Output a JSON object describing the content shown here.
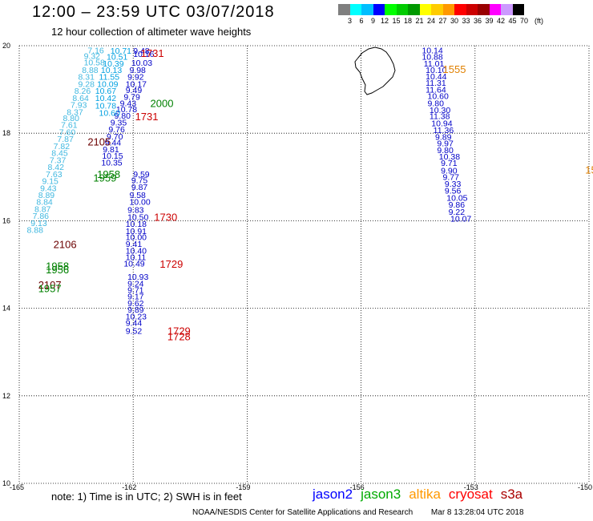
{
  "header": {
    "title": "12:00 – 23:59 UTC 03/07/2018",
    "subtitle": "12 hour collection of altimeter wave heights"
  },
  "colorbar": {
    "colors": [
      "#7f7f7f",
      "#00ffff",
      "#00bfff",
      "#0000ff",
      "#00ff00",
      "#00cc00",
      "#009900",
      "#ffff00",
      "#ffcc00",
      "#ff9900",
      "#ff0000",
      "#cc0000",
      "#990000",
      "#ff00ff",
      "#cc99ff",
      "#000000"
    ],
    "labels": [
      "3",
      "6",
      "9",
      "12",
      "15",
      "18",
      "21",
      "24",
      "27",
      "30",
      "33",
      "36",
      "39",
      "42",
      "45",
      "70",
      "(ft)"
    ]
  },
  "map": {
    "lon_ticks": [
      "-165",
      "-162",
      "-159",
      "-156",
      "-153",
      "-150"
    ],
    "lat_ticks": [
      "20",
      "18",
      "16",
      "14",
      "12",
      "10"
    ],
    "lon_range": [
      -165,
      -150
    ],
    "lat_range": [
      10,
      20
    ],
    "grid": "dotted",
    "coastline": "Island of Hawaii (Big Island)",
    "tracks": [
      {
        "satellite": "jason2",
        "color": "#0000c8",
        "points": [
          {
            "lon": -162.0,
            "lat": 19.82,
            "v": "9.48"
          },
          {
            "lon": -162.0,
            "lat": 19.74,
            "v": "10.16"
          },
          {
            "lon": -162.05,
            "lat": 19.54,
            "v": "10.03"
          },
          {
            "lon": -162.1,
            "lat": 19.38,
            "v": "9.98"
          },
          {
            "lon": -162.15,
            "lat": 19.22,
            "v": "9.92"
          },
          {
            "lon": -162.2,
            "lat": 19.06,
            "v": "10.17"
          },
          {
            "lon": -162.2,
            "lat": 18.92,
            "v": "9.49"
          },
          {
            "lon": -162.25,
            "lat": 18.76,
            "v": "9.79"
          },
          {
            "lon": -162.35,
            "lat": 18.62,
            "v": "9.43"
          },
          {
            "lon": -162.45,
            "lat": 18.48,
            "v": "10.78"
          },
          {
            "lon": -162.5,
            "lat": 18.33,
            "v": "9.80"
          },
          {
            "lon": -162.6,
            "lat": 18.18,
            "v": "9.35"
          },
          {
            "lon": -162.65,
            "lat": 18.02,
            "v": "9.76"
          },
          {
            "lon": -162.7,
            "lat": 17.86,
            "v": "9.70"
          },
          {
            "lon": -162.75,
            "lat": 17.72,
            "v": "9.44"
          },
          {
            "lon": -162.8,
            "lat": 17.56,
            "v": "9.81"
          },
          {
            "lon": -162.82,
            "lat": 17.42,
            "v": "10.15"
          },
          {
            "lon": -162.84,
            "lat": 17.26,
            "v": "10.35"
          },
          {
            "lon": -162.0,
            "lat": 17.0,
            "v": "9.59"
          },
          {
            "lon": -162.05,
            "lat": 16.86,
            "v": "9.75"
          },
          {
            "lon": -162.05,
            "lat": 16.7,
            "v": "9.87"
          },
          {
            "lon": -162.1,
            "lat": 16.52,
            "v": "9.58"
          },
          {
            "lon": -162.1,
            "lat": 16.36,
            "v": "10.00"
          },
          {
            "lon": -162.15,
            "lat": 16.18,
            "v": "9.83"
          },
          {
            "lon": -162.15,
            "lat": 16.02,
            "v": "10.50"
          },
          {
            "lon": -162.2,
            "lat": 15.86,
            "v": "10.18"
          },
          {
            "lon": -162.2,
            "lat": 15.7,
            "v": "10.91"
          },
          {
            "lon": -162.2,
            "lat": 15.56,
            "v": "10.00"
          },
          {
            "lon": -162.2,
            "lat": 15.4,
            "v": "9.41"
          },
          {
            "lon": -162.2,
            "lat": 15.25,
            "v": "10.40"
          },
          {
            "lon": -162.2,
            "lat": 15.1,
            "v": "10.11"
          },
          {
            "lon": -162.25,
            "lat": 14.95,
            "v": "10.49"
          },
          {
            "lon": -162.15,
            "lat": 14.65,
            "v": "10.93"
          },
          {
            "lon": -162.15,
            "lat": 14.5,
            "v": "9.24"
          },
          {
            "lon": -162.15,
            "lat": 14.35,
            "v": "9.71"
          },
          {
            "lon": -162.15,
            "lat": 14.2,
            "v": "9.17"
          },
          {
            "lon": -162.15,
            "lat": 14.05,
            "v": "9.62"
          },
          {
            "lon": -162.15,
            "lat": 13.9,
            "v": "9.89"
          },
          {
            "lon": -162.2,
            "lat": 13.75,
            "v": "10.23"
          },
          {
            "lon": -162.2,
            "lat": 13.6,
            "v": "9.44"
          },
          {
            "lon": -162.2,
            "lat": 13.42,
            "v": "9.52"
          },
          {
            "lon": -154.4,
            "lat": 19.83,
            "v": "10.14"
          },
          {
            "lon": -154.4,
            "lat": 19.68,
            "v": "10.88"
          },
          {
            "lon": -154.35,
            "lat": 19.52,
            "v": "11.01"
          },
          {
            "lon": -154.3,
            "lat": 19.38,
            "v": "10.10"
          },
          {
            "lon": -154.3,
            "lat": 19.23,
            "v": "10.44"
          },
          {
            "lon": -154.3,
            "lat": 19.08,
            "v": "11.31"
          },
          {
            "lon": -154.3,
            "lat": 18.93,
            "v": "11.64"
          },
          {
            "lon": -154.25,
            "lat": 18.78,
            "v": "10.60"
          },
          {
            "lon": -154.25,
            "lat": 18.62,
            "v": "9.80"
          },
          {
            "lon": -154.2,
            "lat": 18.46,
            "v": "10.30"
          },
          {
            "lon": -154.2,
            "lat": 18.32,
            "v": "11.38"
          },
          {
            "lon": -154.15,
            "lat": 18.16,
            "v": "10.94"
          },
          {
            "lon": -154.1,
            "lat": 18.0,
            "v": "11.36"
          },
          {
            "lon": -154.05,
            "lat": 17.85,
            "v": "9.89"
          },
          {
            "lon": -154.0,
            "lat": 17.7,
            "v": "9.97"
          },
          {
            "lon": -154.0,
            "lat": 17.55,
            "v": "9.80"
          },
          {
            "lon": -153.95,
            "lat": 17.4,
            "v": "10.38"
          },
          {
            "lon": -153.9,
            "lat": 17.25,
            "v": "9.71"
          },
          {
            "lon": -153.9,
            "lat": 17.08,
            "v": "9.90"
          },
          {
            "lon": -153.85,
            "lat": 16.93,
            "v": "9.77"
          },
          {
            "lon": -153.8,
            "lat": 16.78,
            "v": "9.33"
          },
          {
            "lon": -153.8,
            "lat": 16.62,
            "v": "9.56"
          },
          {
            "lon": -153.75,
            "lat": 16.46,
            "v": "10.05"
          },
          {
            "lon": -153.7,
            "lat": 16.3,
            "v": "9.86"
          },
          {
            "lon": -153.7,
            "lat": 16.14,
            "v": "9.22"
          },
          {
            "lon": -153.65,
            "lat": 15.98,
            "v": "10.07"
          }
        ]
      },
      {
        "satellite": "jason2 (near-track cluster)",
        "color": "#00a0e0",
        "points": [
          {
            "lon": -162.6,
            "lat": 19.82,
            "v": "10.71"
          },
          {
            "lon": -162.7,
            "lat": 19.68,
            "v": "10.51"
          },
          {
            "lon": -162.8,
            "lat": 19.52,
            "v": "10.39"
          },
          {
            "lon": -162.85,
            "lat": 19.38,
            "v": "10.13"
          },
          {
            "lon": -162.9,
            "lat": 19.22,
            "v": "11.55"
          },
          {
            "lon": -162.95,
            "lat": 19.06,
            "v": "10.09"
          },
          {
            "lon": -163.0,
            "lat": 18.9,
            "v": "10.67"
          },
          {
            "lon": -163.0,
            "lat": 18.74,
            "v": "10.42"
          },
          {
            "lon": -163.0,
            "lat": 18.56,
            "v": "10.78"
          },
          {
            "lon": -162.9,
            "lat": 18.4,
            "v": "10.60"
          }
        ]
      },
      {
        "satellite": "jason3",
        "color": "#40b8e0",
        "points": [
          {
            "lon": -163.2,
            "lat": 19.83,
            "v": "7.16"
          },
          {
            "lon": -163.3,
            "lat": 19.7,
            "v": "9.32"
          },
          {
            "lon": -163.3,
            "lat": 19.55,
            "v": "10.58"
          },
          {
            "lon": -163.35,
            "lat": 19.38,
            "v": "8.88"
          },
          {
            "lon": -163.45,
            "lat": 19.22,
            "v": "8.31"
          },
          {
            "lon": -163.45,
            "lat": 19.06,
            "v": "9.28"
          },
          {
            "lon": -163.55,
            "lat": 18.9,
            "v": "8.26"
          },
          {
            "lon": -163.6,
            "lat": 18.74,
            "v": "8.64"
          },
          {
            "lon": -163.65,
            "lat": 18.58,
            "v": "7.93"
          },
          {
            "lon": -163.75,
            "lat": 18.42,
            "v": "8.37"
          },
          {
            "lon": -163.85,
            "lat": 18.28,
            "v": "8.80"
          },
          {
            "lon": -163.9,
            "lat": 18.12,
            "v": "7.61"
          },
          {
            "lon": -163.95,
            "lat": 17.96,
            "v": "7.60"
          },
          {
            "lon": -164.0,
            "lat": 17.8,
            "v": "7.87"
          },
          {
            "lon": -164.1,
            "lat": 17.64,
            "v": "7.82"
          },
          {
            "lon": -164.15,
            "lat": 17.48,
            "v": "8.45"
          },
          {
            "lon": -164.2,
            "lat": 17.32,
            "v": "7.37"
          },
          {
            "lon": -164.25,
            "lat": 17.16,
            "v": "8.42"
          },
          {
            "lon": -164.3,
            "lat": 17.0,
            "v": "7.63"
          },
          {
            "lon": -164.4,
            "lat": 16.84,
            "v": "9.15"
          },
          {
            "lon": -164.45,
            "lat": 16.68,
            "v": "9.43"
          },
          {
            "lon": -164.5,
            "lat": 16.52,
            "v": "8.89"
          },
          {
            "lon": -164.55,
            "lat": 16.36,
            "v": "8.84"
          },
          {
            "lon": -164.6,
            "lat": 16.2,
            "v": "8.87"
          },
          {
            "lon": -164.65,
            "lat": 16.04,
            "v": "7.86"
          },
          {
            "lon": -164.7,
            "lat": 15.88,
            "v": "9.13"
          },
          {
            "lon": -164.8,
            "lat": 15.72,
            "v": "8.88"
          }
        ]
      }
    ],
    "pass_times": [
      {
        "text": "1731",
        "color": "#cc0000",
        "lon": -161.8,
        "lat": 19.74
      },
      {
        "text": "2000",
        "color": "#008000",
        "lon": -161.55,
        "lat": 18.6
      },
      {
        "text": "1731",
        "color": "#cc0000",
        "lon": -161.95,
        "lat": 18.3
      },
      {
        "text": "2105",
        "color": "#6b0000",
        "lon": -163.2,
        "lat": 17.72
      },
      {
        "text": "1958",
        "color": "#008000",
        "lon": -162.95,
        "lat": 16.98
      },
      {
        "text": "1959",
        "color": "#008000",
        "lon": -163.05,
        "lat": 16.9
      },
      {
        "text": "1730",
        "color": "#cc0000",
        "lon": -161.45,
        "lat": 16.0
      },
      {
        "text": "2106",
        "color": "#6b0000",
        "lon": -164.1,
        "lat": 15.38
      },
      {
        "text": "1729",
        "color": "#cc0000",
        "lon": -161.3,
        "lat": 14.93
      },
      {
        "text": "1958",
        "color": "#008000",
        "lon": -164.3,
        "lat": 14.88
      },
      {
        "text": "1956",
        "color": "#008000",
        "lon": -164.3,
        "lat": 14.8
      },
      {
        "text": "2107",
        "color": "#6b0000",
        "lon": -164.5,
        "lat": 14.45
      },
      {
        "text": "1957",
        "color": "#008000",
        "lon": -164.5,
        "lat": 14.37
      },
      {
        "text": "1729",
        "color": "#cc0000",
        "lon": -161.1,
        "lat": 13.4
      },
      {
        "text": "1728",
        "color": "#cc0000",
        "lon": -161.1,
        "lat": 13.27
      },
      {
        "text": "1555",
        "color": "#e08000",
        "lon": -153.85,
        "lat": 19.38
      },
      {
        "text": "15",
        "color": "#e08000",
        "lon": -150.1,
        "lat": 17.08
      }
    ]
  },
  "note": "note:  1) Time is in UTC;  2) SWH is in feet",
  "legend": [
    {
      "label": "jason2",
      "color": "#0000ff"
    },
    {
      "label": "jason3",
      "color": "#00aa00"
    },
    {
      "label": "altika",
      "color": "#ff9900"
    },
    {
      "label": "cryosat",
      "color": "#ff0000"
    },
    {
      "label": "s3a",
      "color": "#aa0000"
    }
  ],
  "footer": {
    "agency": "NOAA/NESDIS Center for Satellite Applications and Research",
    "timestamp": "Mar  8 13:28:04 UTC 2018"
  }
}
